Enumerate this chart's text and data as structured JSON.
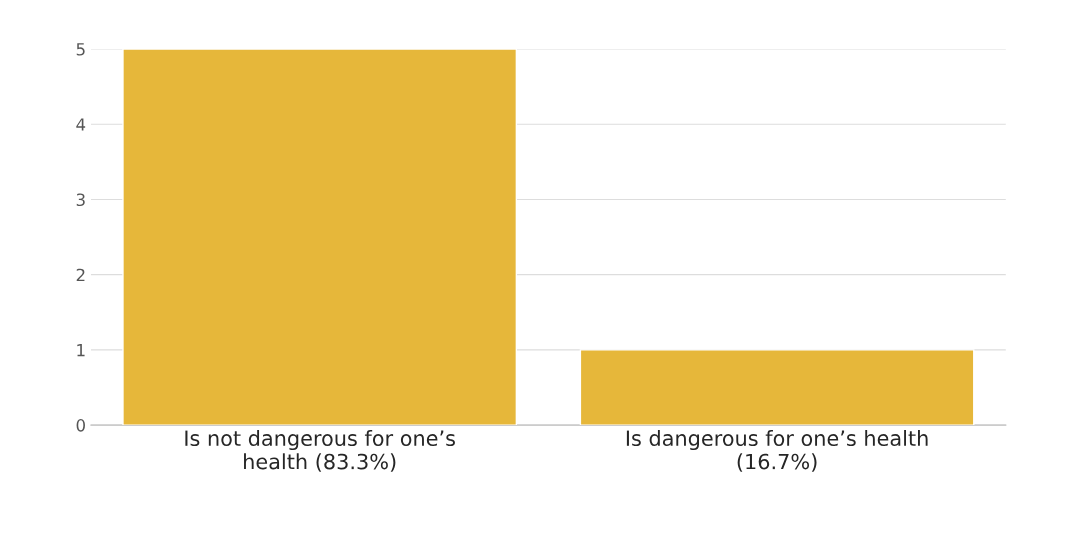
{
  "chart_data": {
    "type": "bar",
    "categories": [
      "Is not dangerous for one’s\nhealth (83.3%)",
      "Is dangerous for one’s health\n(16.7%)"
    ],
    "values": [
      5,
      1
    ],
    "color": "#e6b73a",
    "ylim": [
      0,
      5
    ],
    "yticks": [
      0,
      1,
      2,
      3,
      4,
      5
    ],
    "grid": "y",
    "legend": false
  }
}
